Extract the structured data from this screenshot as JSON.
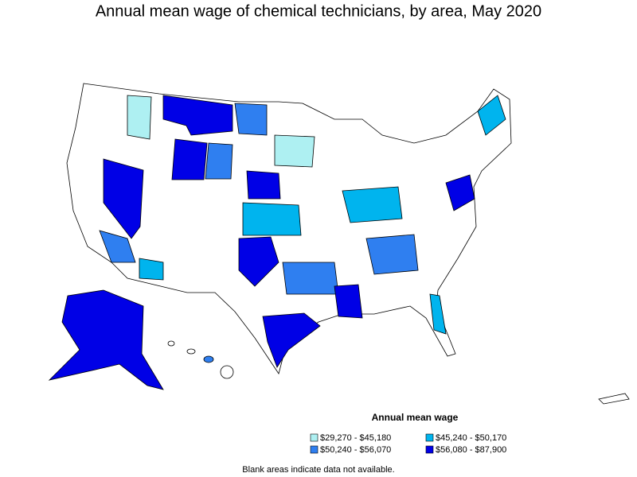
{
  "title": "Annual mean wage of chemical technicians, by area, May 2020",
  "legend": {
    "title": "Annual mean wage",
    "items": [
      {
        "label": "$29,270 - $45,180",
        "color": "#aef0f2"
      },
      {
        "label": "$45,240 - $50,170",
        "color": "#00b4ee"
      },
      {
        "label": "$50,240 - $56,070",
        "color": "#2f7ff0"
      },
      {
        "label": "$56,080 - $87,900",
        "color": "#0000e6"
      }
    ]
  },
  "note": "Blank areas indicate data not available."
}
